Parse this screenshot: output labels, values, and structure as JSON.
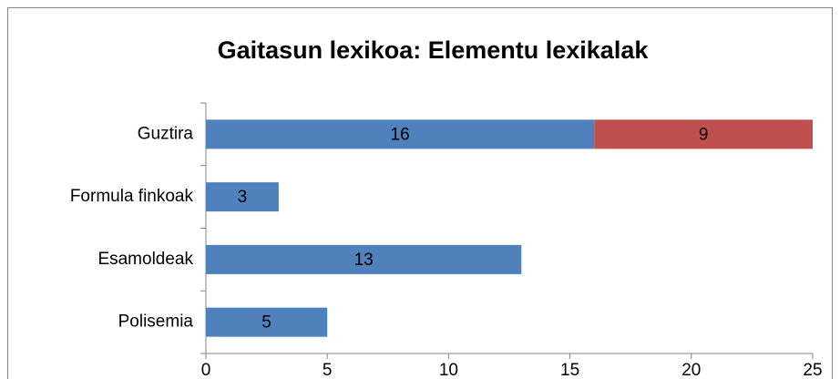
{
  "chart_data": {
    "type": "stacked-bar-horizontal",
    "title": "Gaitasun lexikoa: Elementu lexikalak",
    "categories": [
      "Guztira",
      "Formula finkoak",
      "Esamoldeak",
      "Polisemia"
    ],
    "series": [
      {
        "color": "#4f81bd",
        "values": [
          16,
          3,
          13,
          5
        ]
      },
      {
        "color": "#c0504d",
        "values": [
          9,
          null,
          null,
          null
        ]
      }
    ],
    "xlim": [
      0,
      25
    ],
    "xticks": [
      0,
      5,
      10,
      15,
      20,
      25
    ],
    "grid": false
  }
}
